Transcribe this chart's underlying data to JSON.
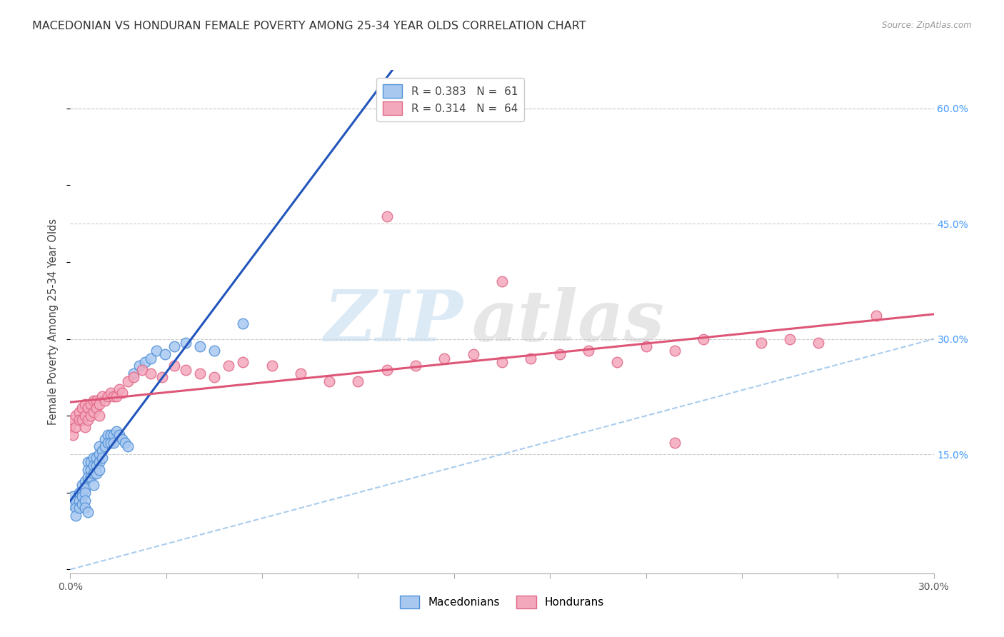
{
  "title": "MACEDONIAN VS HONDURAN FEMALE POVERTY AMONG 25-34 YEAR OLDS CORRELATION CHART",
  "source": "Source: ZipAtlas.com",
  "ylabel": "Female Poverty Among 25-34 Year Olds",
  "xlim": [
    0.0,
    0.3
  ],
  "ylim": [
    -0.005,
    0.65
  ],
  "xticks": [
    0.0,
    0.03333,
    0.06667,
    0.1,
    0.13333,
    0.16667,
    0.2,
    0.23333,
    0.26667,
    0.3
  ],
  "xtick_labels_show": {
    "0.0": "0.0%",
    "0.30": "30.0%"
  },
  "ytick_labels_right": [
    "15.0%",
    "30.0%",
    "45.0%",
    "60.0%"
  ],
  "yticks_right": [
    0.15,
    0.3,
    0.45,
    0.6
  ],
  "grid_yticks": [
    0.15,
    0.3,
    0.45,
    0.6
  ],
  "grid_color": "#cccccc",
  "background_color": "#ffffff",
  "macedonian_color": "#a8c8f0",
  "honduran_color": "#f4a8bc",
  "macedonian_edge": "#5090d8",
  "honduran_edge": "#e06888",
  "regression_macedonian_color": "#2255bb",
  "regression_honduran_color": "#dd5577",
  "diagonal_color": "#aaccee",
  "R_macedonian": "0.383",
  "N_macedonian": "61",
  "R_honduran": "0.314",
  "N_honduran": "64",
  "watermark_zip": "ZIP",
  "watermark_atlas": "atlas",
  "legend_macedonian_label": "Macedonians",
  "legend_honduran_label": "Hondurans",
  "title_fontsize": 11.5,
  "axis_label_fontsize": 10.5,
  "tick_fontsize": 10,
  "legend_fontsize": 11,
  "right_tick_color": "#4499ff",
  "macedonian_x": [
    0.0,
    0.001,
    0.002,
    0.002,
    0.002,
    0.003,
    0.003,
    0.003,
    0.004,
    0.004,
    0.004,
    0.004,
    0.005,
    0.005,
    0.005,
    0.005,
    0.005,
    0.006,
    0.006,
    0.006,
    0.006,
    0.007,
    0.007,
    0.007,
    0.008,
    0.008,
    0.008,
    0.008,
    0.009,
    0.009,
    0.009,
    0.01,
    0.01,
    0.01,
    0.01,
    0.011,
    0.011,
    0.012,
    0.012,
    0.013,
    0.013,
    0.014,
    0.014,
    0.015,
    0.015,
    0.016,
    0.017,
    0.018,
    0.019,
    0.02,
    0.022,
    0.024,
    0.026,
    0.028,
    0.03,
    0.033,
    0.036,
    0.04,
    0.045,
    0.05,
    0.06
  ],
  "macedonian_y": [
    0.085,
    0.095,
    0.09,
    0.08,
    0.07,
    0.1,
    0.09,
    0.08,
    0.11,
    0.1,
    0.095,
    0.085,
    0.115,
    0.105,
    0.1,
    0.09,
    0.08,
    0.14,
    0.13,
    0.12,
    0.075,
    0.14,
    0.13,
    0.12,
    0.145,
    0.135,
    0.125,
    0.11,
    0.145,
    0.135,
    0.125,
    0.16,
    0.15,
    0.14,
    0.13,
    0.155,
    0.145,
    0.17,
    0.16,
    0.175,
    0.165,
    0.175,
    0.165,
    0.175,
    0.165,
    0.18,
    0.175,
    0.17,
    0.165,
    0.16,
    0.255,
    0.265,
    0.27,
    0.275,
    0.285,
    0.28,
    0.29,
    0.295,
    0.29,
    0.285,
    0.32
  ],
  "honduran_x": [
    0.0,
    0.001,
    0.001,
    0.002,
    0.002,
    0.003,
    0.003,
    0.004,
    0.004,
    0.005,
    0.005,
    0.005,
    0.006,
    0.006,
    0.007,
    0.007,
    0.008,
    0.008,
    0.009,
    0.009,
    0.01,
    0.01,
    0.011,
    0.012,
    0.013,
    0.014,
    0.015,
    0.016,
    0.017,
    0.018,
    0.02,
    0.022,
    0.025,
    0.028,
    0.032,
    0.036,
    0.04,
    0.045,
    0.05,
    0.055,
    0.06,
    0.07,
    0.08,
    0.09,
    0.1,
    0.11,
    0.12,
    0.13,
    0.14,
    0.15,
    0.16,
    0.17,
    0.18,
    0.19,
    0.2,
    0.21,
    0.22,
    0.24,
    0.25,
    0.26,
    0.11,
    0.15,
    0.21,
    0.28
  ],
  "honduran_y": [
    0.185,
    0.195,
    0.175,
    0.2,
    0.185,
    0.205,
    0.195,
    0.21,
    0.195,
    0.2,
    0.215,
    0.185,
    0.21,
    0.195,
    0.215,
    0.2,
    0.22,
    0.205,
    0.22,
    0.21,
    0.215,
    0.2,
    0.225,
    0.22,
    0.225,
    0.23,
    0.225,
    0.225,
    0.235,
    0.23,
    0.245,
    0.25,
    0.26,
    0.255,
    0.25,
    0.265,
    0.26,
    0.255,
    0.25,
    0.265,
    0.27,
    0.265,
    0.255,
    0.245,
    0.245,
    0.26,
    0.265,
    0.275,
    0.28,
    0.27,
    0.275,
    0.28,
    0.285,
    0.27,
    0.29,
    0.285,
    0.3,
    0.295,
    0.3,
    0.295,
    0.46,
    0.375,
    0.165,
    0.33
  ]
}
